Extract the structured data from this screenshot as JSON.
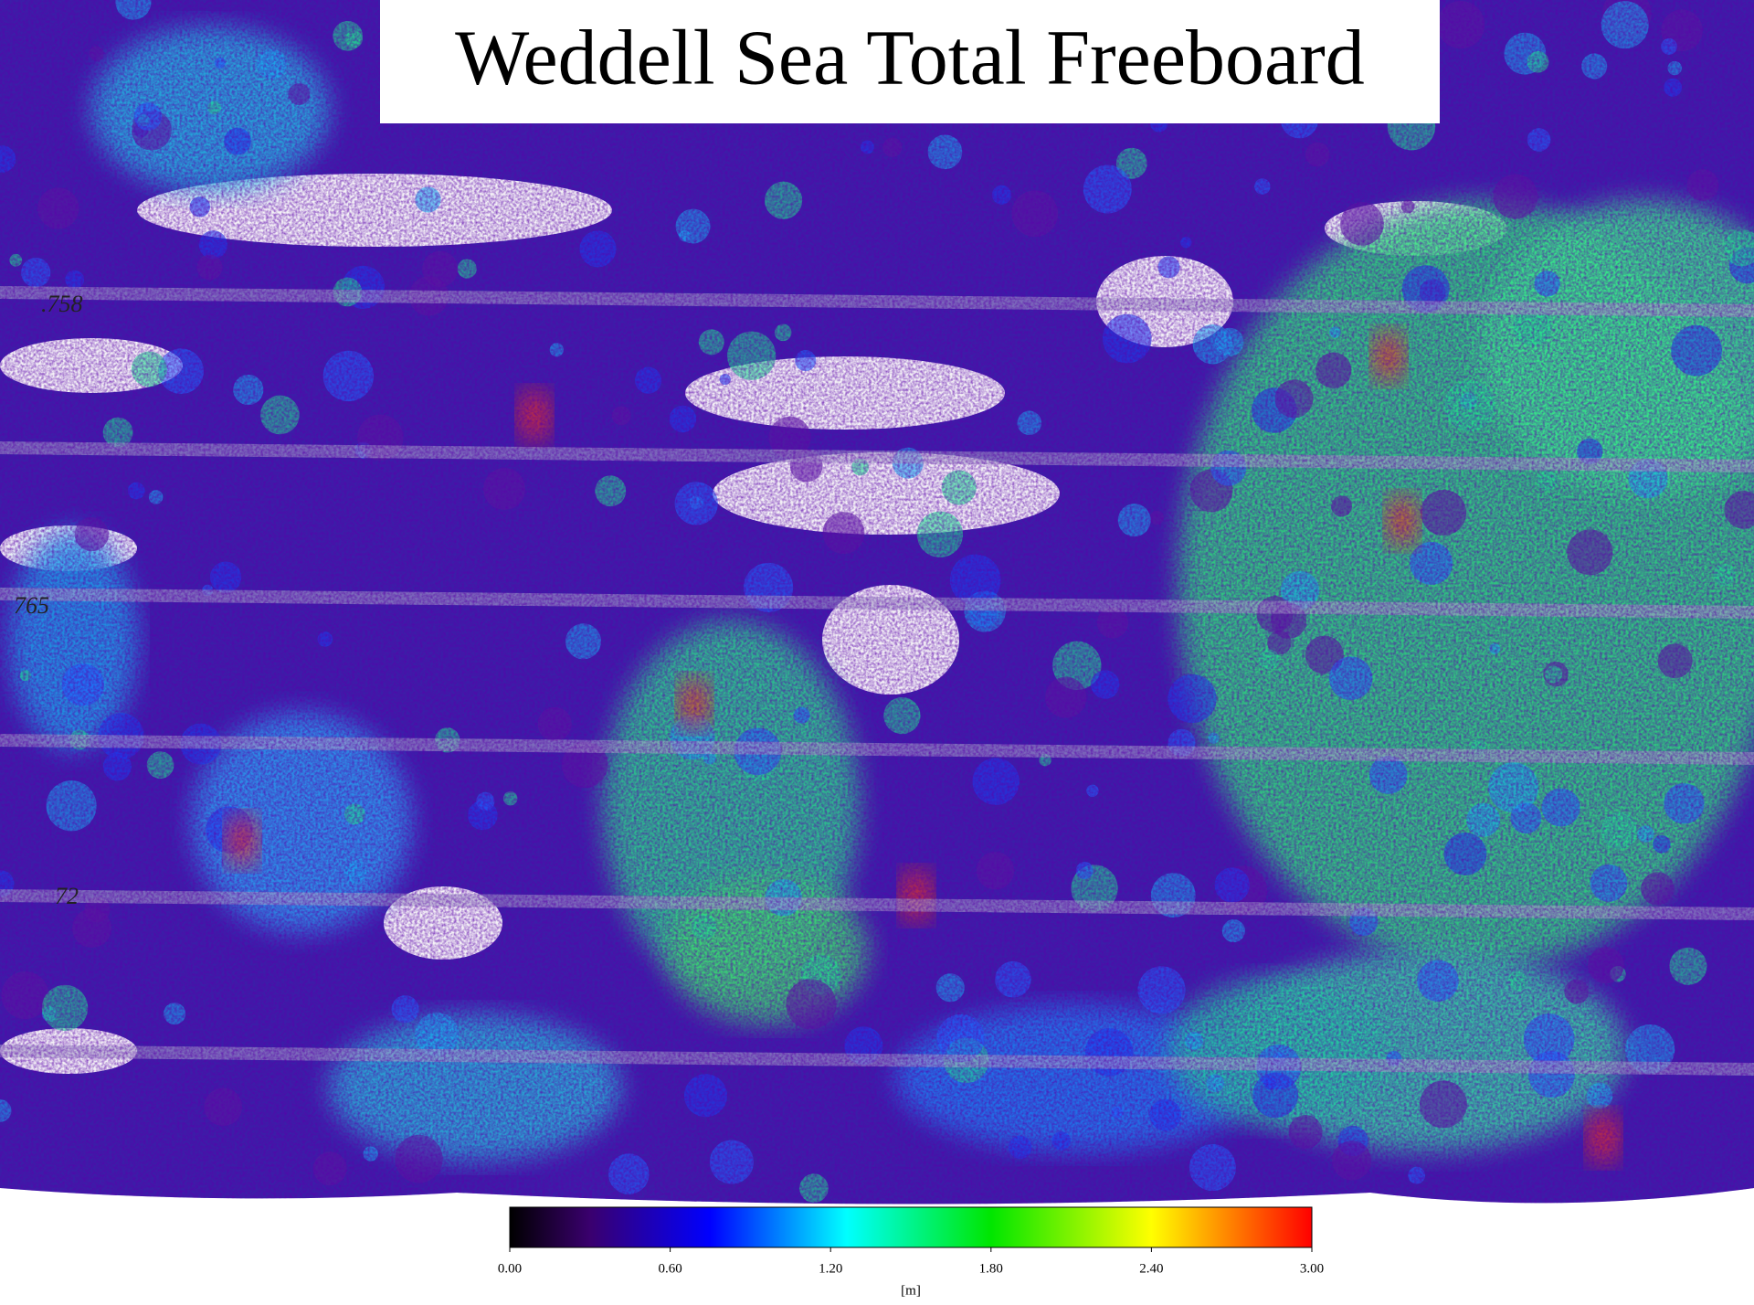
{
  "title": "Weddell Sea Total Freeboard",
  "track_labels": [
    ".758",
    "765",
    "72"
  ],
  "colorbar": {
    "lim": [
      0,
      3
    ],
    "ticks": [
      {
        "value": 0,
        "label": "0.00"
      },
      {
        "value": 0.6,
        "label": "0.60"
      },
      {
        "value": 1.2,
        "label": "1.20"
      },
      {
        "value": 1.8,
        "label": "1.80"
      },
      {
        "value": 2.4,
        "label": "2.40"
      },
      {
        "value": 3,
        "label": "3.00"
      }
    ],
    "unit": "[m]"
  }
}
